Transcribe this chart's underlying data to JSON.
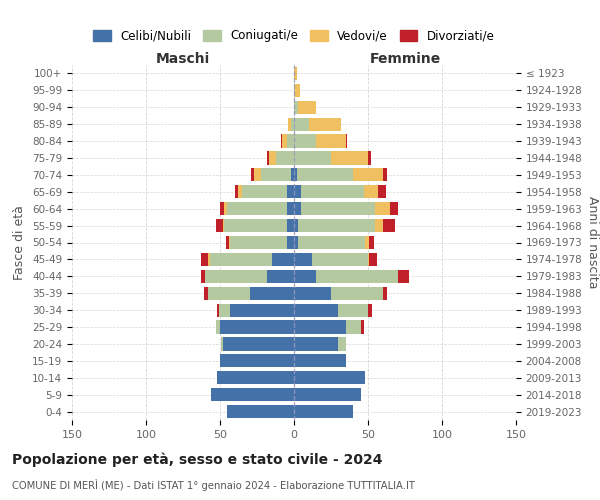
{
  "age_groups": [
    "0-4",
    "5-9",
    "10-14",
    "15-19",
    "20-24",
    "25-29",
    "30-34",
    "35-39",
    "40-44",
    "45-49",
    "50-54",
    "55-59",
    "60-64",
    "65-69",
    "70-74",
    "75-79",
    "80-84",
    "85-89",
    "90-94",
    "95-99",
    "100+"
  ],
  "birth_years": [
    "2019-2023",
    "2014-2018",
    "2009-2013",
    "2004-2008",
    "1999-2003",
    "1994-1998",
    "1989-1993",
    "1984-1988",
    "1979-1983",
    "1974-1978",
    "1969-1973",
    "1964-1968",
    "1959-1963",
    "1954-1958",
    "1949-1953",
    "1944-1948",
    "1939-1943",
    "1934-1938",
    "1929-1933",
    "1924-1928",
    "≤ 1923"
  ],
  "male_celibi": [
    45,
    56,
    52,
    50,
    48,
    50,
    43,
    30,
    18,
    15,
    5,
    5,
    5,
    5,
    2,
    0,
    0,
    0,
    0,
    0,
    0
  ],
  "male_coniugati": [
    0,
    0,
    0,
    0,
    1,
    3,
    8,
    28,
    42,
    42,
    38,
    42,
    40,
    30,
    20,
    12,
    5,
    2,
    0,
    0,
    0
  ],
  "male_vedovi": [
    0,
    0,
    0,
    0,
    0,
    0,
    0,
    0,
    0,
    1,
    1,
    1,
    2,
    3,
    5,
    5,
    3,
    2,
    0,
    0,
    0
  ],
  "male_divorziati": [
    0,
    0,
    0,
    0,
    0,
    0,
    1,
    3,
    3,
    5,
    2,
    5,
    3,
    2,
    2,
    1,
    1,
    0,
    0,
    0,
    0
  ],
  "female_celibi": [
    40,
    45,
    48,
    35,
    30,
    35,
    30,
    25,
    15,
    12,
    3,
    3,
    5,
    5,
    2,
    0,
    0,
    0,
    0,
    0,
    0
  ],
  "female_coniugati": [
    0,
    0,
    0,
    0,
    5,
    10,
    20,
    35,
    55,
    38,
    45,
    52,
    50,
    42,
    38,
    25,
    15,
    10,
    3,
    1,
    0
  ],
  "female_vedovi": [
    0,
    0,
    0,
    0,
    0,
    0,
    0,
    0,
    0,
    1,
    3,
    5,
    10,
    10,
    20,
    25,
    20,
    22,
    12,
    3,
    2
  ],
  "female_divorziati": [
    0,
    0,
    0,
    0,
    0,
    2,
    3,
    3,
    8,
    5,
    3,
    8,
    5,
    5,
    3,
    2,
    1,
    0,
    0,
    0,
    0
  ],
  "colors": {
    "celibi": "#4472a8",
    "coniugati": "#b5c9a0",
    "vedovi": "#f0c060",
    "divorziati": "#c0202a"
  },
  "xlim": 150,
  "title": "Popolazione per età, sesso e stato civile - 2024",
  "subtitle": "COMUNE DI MERÌ (ME) - Dati ISTAT 1° gennaio 2024 - Elaborazione TUTTITALIA.IT",
  "ylabel_left": "Fasce di età",
  "ylabel_right": "Anni di nascita",
  "header_male": "Maschi",
  "header_female": "Femmine",
  "legend_labels": [
    "Celibi/Nubili",
    "Coniugati/e",
    "Vedovi/e",
    "Divorziati/e"
  ],
  "background_color": "#ffffff",
  "grid_color": "#cccccc"
}
